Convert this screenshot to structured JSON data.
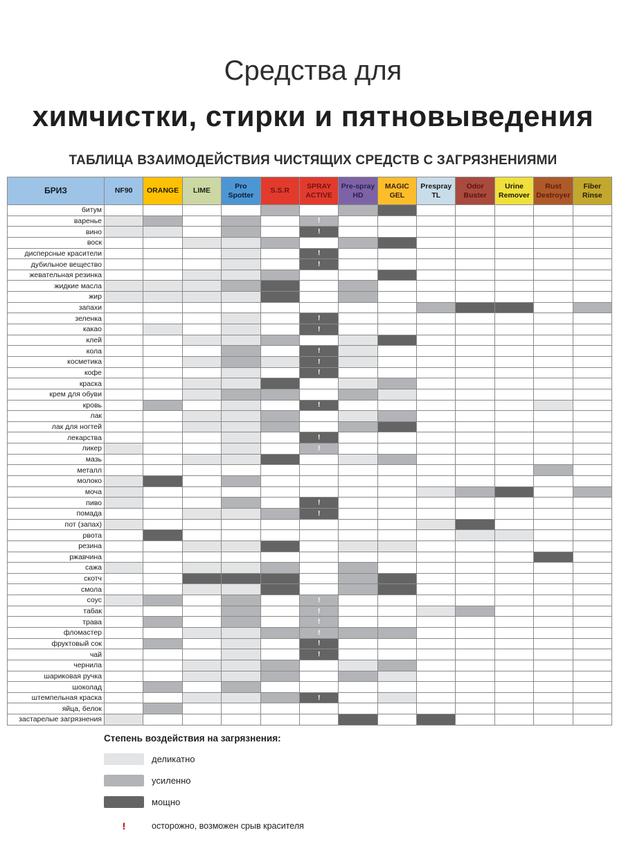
{
  "title": {
    "line1": "Средства для",
    "line2": "химчистки, стирки и пятновыведения",
    "subtitle": "ТАБЛИЦА ВЗАИМОДЕЙСТВИЯ ЧИСТЯЩИХ СРЕДСТВ С ЗАГРЯЗНЕНИЯМИ"
  },
  "colors": {
    "level1": "#E3E4E6",
    "level2": "#B2B4B7",
    "level3": "#646464",
    "warn": "#C00000",
    "grid": "#8A8A8A"
  },
  "table": {
    "corner": {
      "label": "БРИЗ",
      "bg": "#9DC3E6",
      "fg": "#14181f"
    },
    "column_styles": [
      {
        "bg": "#9DC3E6",
        "fg": "#14181f"
      },
      {
        "bg": "#FFC103",
        "fg": "#231a05"
      },
      {
        "bg": "#CBD8A4",
        "fg": "#1d2413"
      },
      {
        "bg": "#4D96D4",
        "fg": "#0e1c33"
      },
      {
        "bg": "#E23B2E",
        "fg": "#6e150e"
      },
      {
        "bg": "#E23B2E",
        "fg": "#6e150e"
      },
      {
        "bg": "#7D63A6",
        "fg": "#2a2050"
      },
      {
        "bg": "#FBBE2A",
        "fg": "#402015"
      },
      {
        "bg": "#C9DCE9",
        "fg": "#16181b"
      },
      {
        "bg": "#A84B3E",
        "fg": "#5e120b"
      },
      {
        "bg": "#EFE03C",
        "fg": "#1d1b08"
      },
      {
        "bg": "#AD5A28",
        "fg": "#64190c"
      },
      {
        "bg": "#C3A82E",
        "fg": "#23200a"
      }
    ]
  },
  "chart_data": {
    "type": "heatmap",
    "title": "ТАБЛИЦА ВЗАИМОДЕЙСТВИЯ ЧИСТЯЩИХ СРЕДСТВ С ЗАГРЯЗНЕНИЯМИ",
    "value_scale": {
      "1": "деликатно",
      "2": "усиленно",
      "3": "мощно",
      "!": "осторожно, возможен срыв красителя"
    },
    "columns": [
      "NF90",
      "ORANGE",
      "LIME",
      "Pro Spotter",
      "S.S.R",
      "SPRAY ACTIVE",
      "Pre-spray HD",
      "MAGIC GEL",
      "Prespray TL",
      "Odor Buster",
      "Urine Remover",
      "Rust Destroyer",
      "Fiber Rinse"
    ],
    "rows": [
      "битум",
      "варенье",
      "вино",
      "воск",
      "дисперсные красители",
      "дубильное вещество",
      "жевательная резинка",
      "жидкие масла",
      "жир",
      "запахи",
      "зеленка",
      "какао",
      "клей",
      "кола",
      "косметика",
      "кофе",
      "краска",
      "крем для обуви",
      "кровь",
      "лак",
      "лак для ногтей",
      "лекарства",
      "ликер",
      "мазь",
      "металл",
      "молоко",
      "моча",
      "пиво",
      "помада",
      "пот (запах)",
      "рвота",
      "резина",
      "ржавчина",
      "сажа",
      "скотч",
      "смола",
      "соус",
      "табак",
      "трава",
      "фломастер",
      "фруктовый сок",
      "чай",
      "чернила",
      "шариковая ручка",
      "шоколад",
      "штемпельная краска",
      "яйца, белок",
      "застарелые загрязнения"
    ],
    "values": [
      [
        "",
        "",
        "",
        "",
        "2",
        "",
        "2",
        "3",
        "",
        "",
        "",
        "",
        ""
      ],
      [
        "1",
        "2",
        "",
        "2",
        "",
        "2!",
        "",
        "",
        "",
        "",
        "",
        "",
        ""
      ],
      [
        "1",
        "1",
        "",
        "2",
        "",
        "3!",
        "",
        "",
        "",
        "",
        "",
        "",
        ""
      ],
      [
        "",
        "",
        "1",
        "1",
        "2",
        "",
        "2",
        "3",
        "",
        "",
        "",
        "",
        ""
      ],
      [
        "",
        "",
        "",
        "1",
        "",
        "3!",
        "",
        "",
        "",
        "",
        "",
        "",
        ""
      ],
      [
        "",
        "",
        "",
        "1",
        "",
        "3!",
        "",
        "",
        "",
        "",
        "",
        "",
        ""
      ],
      [
        "",
        "",
        "1",
        "1",
        "2",
        "",
        "",
        "3",
        "",
        "",
        "",
        "",
        ""
      ],
      [
        "1",
        "1",
        "1",
        "2",
        "3",
        "",
        "2",
        "",
        "",
        "",
        "",
        "",
        ""
      ],
      [
        "1",
        "1",
        "1",
        "1",
        "3",
        "",
        "2",
        "",
        "",
        "",
        "",
        "",
        ""
      ],
      [
        "",
        "",
        "",
        "",
        "",
        "",
        "",
        "",
        "2",
        "3",
        "3",
        "",
        "2"
      ],
      [
        "",
        "",
        "",
        "1",
        "",
        "3!",
        "",
        "",
        "",
        "",
        "",
        "",
        ""
      ],
      [
        "",
        "1",
        "",
        "1",
        "",
        "3!",
        "",
        "",
        "",
        "",
        "",
        "",
        ""
      ],
      [
        "",
        "",
        "1",
        "1",
        "2",
        "",
        "1",
        "3",
        "",
        "",
        "",
        "",
        ""
      ],
      [
        "",
        "",
        "",
        "2",
        "",
        "3!",
        "1",
        "",
        "",
        "",
        "",
        "",
        ""
      ],
      [
        "",
        "",
        "1",
        "2",
        "1",
        "3!",
        "1",
        "",
        "",
        "",
        "",
        "",
        ""
      ],
      [
        "",
        "",
        "",
        "1",
        "",
        "3!",
        "",
        "",
        "",
        "",
        "",
        "",
        ""
      ],
      [
        "",
        "",
        "1",
        "1",
        "3",
        "",
        "1",
        "2",
        "",
        "",
        "",
        "",
        ""
      ],
      [
        "",
        "",
        "1",
        "2",
        "2",
        "",
        "2",
        "1",
        "",
        "",
        "",
        "",
        ""
      ],
      [
        "",
        "2",
        "",
        "1",
        "",
        "3!",
        "",
        "",
        "",
        "",
        "",
        "1",
        ""
      ],
      [
        "",
        "",
        "1",
        "1",
        "2",
        "",
        "1",
        "2",
        "",
        "",
        "",
        "",
        ""
      ],
      [
        "",
        "",
        "1",
        "1",
        "2",
        "",
        "2",
        "3",
        "",
        "",
        "",
        "",
        ""
      ],
      [
        "",
        "",
        "",
        "1",
        "",
        "3!",
        "",
        "",
        "",
        "",
        "",
        "",
        ""
      ],
      [
        "1",
        "",
        "",
        "1",
        "",
        "2!",
        "",
        "",
        "",
        "",
        "",
        "",
        ""
      ],
      [
        "",
        "",
        "1",
        "1",
        "3",
        "",
        "1",
        "2",
        "",
        "",
        "",
        "",
        ""
      ],
      [
        "",
        "",
        "",
        "",
        "",
        "",
        "",
        "",
        "",
        "",
        "",
        "2",
        ""
      ],
      [
        "1",
        "3",
        "",
        "2",
        "",
        "",
        "",
        "",
        "",
        "",
        "",
        "",
        ""
      ],
      [
        "1",
        "",
        "",
        "",
        "",
        "",
        "",
        "",
        "1",
        "2",
        "3",
        "",
        "2"
      ],
      [
        "1",
        "",
        "",
        "2",
        "",
        "3!",
        "",
        "",
        "",
        "",
        "",
        "",
        ""
      ],
      [
        "",
        "",
        "1",
        "1",
        "2",
        "3!",
        "",
        "",
        "",
        "",
        "",
        "",
        ""
      ],
      [
        "1",
        "",
        "",
        "",
        "",
        "",
        "",
        "",
        "1",
        "3",
        "",
        "",
        ""
      ],
      [
        "",
        "3",
        "",
        "",
        "",
        "",
        "",
        "",
        "",
        "1",
        "1",
        "",
        ""
      ],
      [
        "",
        "",
        "1",
        "1",
        "3",
        "",
        "1",
        "1",
        "",
        "",
        "",
        "",
        ""
      ],
      [
        "",
        "",
        "",
        "",
        "",
        "",
        "",
        "",
        "",
        "",
        "",
        "3",
        ""
      ],
      [
        "1",
        "",
        "1",
        "1",
        "2",
        "",
        "2",
        "",
        "",
        "",
        "",
        "",
        ""
      ],
      [
        "",
        "",
        "3",
        "3",
        "3",
        "",
        "2",
        "3",
        "",
        "",
        "",
        "",
        ""
      ],
      [
        "",
        "",
        "1",
        "1",
        "3",
        "",
        "2",
        "3",
        "",
        "",
        "",
        "",
        ""
      ],
      [
        "1",
        "2",
        "",
        "2",
        "",
        "2!",
        "",
        "",
        "",
        "",
        "",
        "",
        ""
      ],
      [
        "",
        "",
        "",
        "2",
        "",
        "2!",
        "",
        "",
        "1",
        "2",
        "",
        "",
        ""
      ],
      [
        "",
        "2",
        "",
        "2",
        "",
        "2!",
        "",
        "",
        "",
        "",
        "",
        "",
        ""
      ],
      [
        "",
        "",
        "1",
        "1",
        "2",
        "2!",
        "2",
        "2",
        "",
        "",
        "",
        "",
        ""
      ],
      [
        "",
        "2",
        "",
        "1",
        "",
        "3!",
        "",
        "",
        "",
        "",
        "",
        "",
        ""
      ],
      [
        "",
        "",
        "",
        "1",
        "",
        "3!",
        "",
        "",
        "",
        "",
        "",
        "",
        ""
      ],
      [
        "",
        "",
        "1",
        "1",
        "2",
        "",
        "1",
        "2",
        "",
        "",
        "",
        "",
        ""
      ],
      [
        "",
        "",
        "1",
        "1",
        "2",
        "",
        "2",
        "1",
        "",
        "",
        "",
        "",
        ""
      ],
      [
        "",
        "2",
        "",
        "2",
        "",
        "",
        "",
        "",
        "",
        "",
        "",
        "",
        ""
      ],
      [
        "",
        "",
        "1",
        "1",
        "2",
        "3!",
        "",
        "1",
        "",
        "",
        "",
        "",
        ""
      ],
      [
        "",
        "2",
        "",
        "",
        "",
        "",
        "",
        "",
        "",
        "",
        "",
        "",
        ""
      ],
      [
        "1",
        "",
        "",
        "",
        "",
        "",
        "3",
        "",
        "3",
        "",
        "",
        "",
        ""
      ]
    ]
  },
  "legend": {
    "title": "Степень воздействия на загрязнения:",
    "items": [
      {
        "label": "деликатно",
        "level": "1"
      },
      {
        "label": "усиленно",
        "level": "2"
      },
      {
        "label": "мощно",
        "level": "3"
      }
    ],
    "warn_mark": "!",
    "warn_text": "осторожно, возможен срыв красителя"
  }
}
